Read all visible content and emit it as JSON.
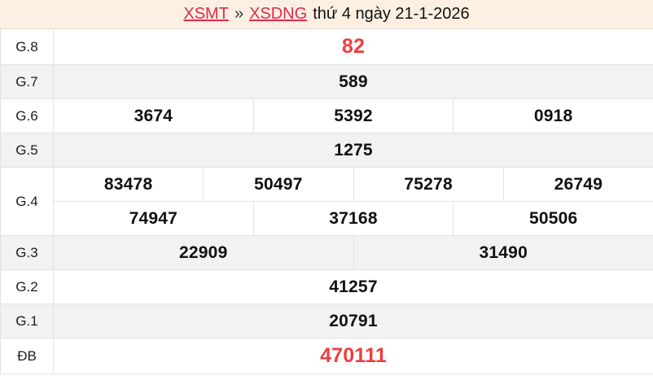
{
  "header": {
    "region_link": "XSMT",
    "separator": "»",
    "province_link": "XSDNG",
    "date_text": "thứ 4 ngày 21-1-2026"
  },
  "colors": {
    "accent_red": "#ee3e3b",
    "link_red": "#dd2b4e",
    "header_bg": "#fdf0e2",
    "row_alt": "#f2f2f2",
    "border": "#e2e2e2",
    "text": "#181818"
  },
  "table": {
    "rows": [
      {
        "label": "G.8",
        "cells": [
          {
            "value": "82",
            "highlight": true
          }
        ]
      },
      {
        "label": "G.7",
        "cells": [
          {
            "value": "589"
          }
        ]
      },
      {
        "label": "G.6",
        "cells": [
          {
            "value": "3674"
          },
          {
            "value": "5392"
          },
          {
            "value": "0918"
          }
        ]
      },
      {
        "label": "G.5",
        "cells": [
          {
            "value": "1275"
          }
        ]
      },
      {
        "label": "G.4",
        "lines": [
          [
            {
              "value": "83478"
            },
            {
              "value": "50497"
            },
            {
              "value": "75278"
            },
            {
              "value": "26749"
            }
          ],
          [
            {
              "value": "74947"
            },
            {
              "value": "37168"
            },
            {
              "value": "50506"
            }
          ]
        ]
      },
      {
        "label": "G.3",
        "cells": [
          {
            "value": "22909"
          },
          {
            "value": "31490"
          }
        ]
      },
      {
        "label": "G.2",
        "cells": [
          {
            "value": "41257"
          }
        ]
      },
      {
        "label": "G.1",
        "cells": [
          {
            "value": "20791"
          }
        ]
      },
      {
        "label": "ĐB",
        "cells": [
          {
            "value": "470111",
            "highlight": true
          }
        ]
      }
    ]
  }
}
